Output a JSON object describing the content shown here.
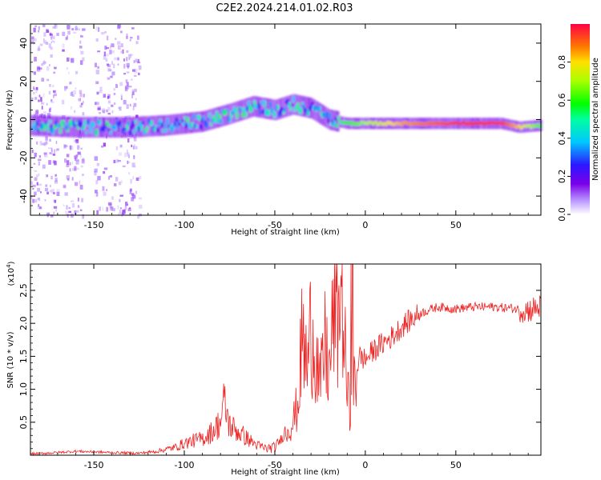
{
  "title": "C2E2.2024.214.01.02.R03",
  "chart_data": [
    {
      "type": "heatmap",
      "name": "spectrogram",
      "xlabel": "Height of straight line (km)",
      "ylabel": "Frequency (Hz)",
      "xlim": [
        -185,
        97
      ],
      "ylim": [
        -50,
        50
      ],
      "xticks": [
        -150,
        -100,
        -50,
        0,
        50
      ],
      "yticks": [
        -40,
        -20,
        0,
        20,
        40
      ],
      "colorbar": {
        "label": "Normalized spectral amplitude",
        "range": [
          0,
          1
        ],
        "ticks": [
          "0.0",
          "0.2",
          "0.4",
          "0.6",
          "0.8"
        ],
        "tick_values": [
          0,
          0.2,
          0.4,
          0.6,
          0.8
        ]
      },
      "trace": [
        {
          "x": -185,
          "freq": -3,
          "amp": 0.45
        },
        {
          "x": -160,
          "freq": -4,
          "amp": 0.5
        },
        {
          "x": -130,
          "freq": -4,
          "amp": 0.45
        },
        {
          "x": -110,
          "freq": -3,
          "amp": 0.45
        },
        {
          "x": -90,
          "freq": -1,
          "amp": 0.45
        },
        {
          "x": -75,
          "freq": 3,
          "amp": 0.5
        },
        {
          "x": -62,
          "freq": 7,
          "amp": 0.45
        },
        {
          "x": -50,
          "freq": 5,
          "amp": 0.45
        },
        {
          "x": -40,
          "freq": 8,
          "amp": 0.45
        },
        {
          "x": -30,
          "freq": 6,
          "amp": 0.4
        },
        {
          "x": -20,
          "freq": 0,
          "amp": 0.4
        },
        {
          "x": -10,
          "freq": -2,
          "amp": 0.6
        },
        {
          "x": 0,
          "freq": -2,
          "amp": 0.7
        },
        {
          "x": 20,
          "freq": -2,
          "amp": 0.85
        },
        {
          "x": 50,
          "freq": -2,
          "amp": 0.95
        },
        {
          "x": 75,
          "freq": -2,
          "amp": 0.95
        },
        {
          "x": 85,
          "freq": -4,
          "amp": 0.8
        },
        {
          "x": 97,
          "freq": -3,
          "amp": 0.6
        }
      ]
    },
    {
      "type": "line",
      "name": "snr",
      "xlabel": "Height of straight line (km)",
      "ylabel": "SNR (10 * v/v)",
      "multiplier_label": "(x10",
      "multiplier_exp": "4",
      "multiplier_close": ")",
      "xlim": [
        -185,
        97
      ],
      "ylim": [
        0,
        2.9
      ],
      "xticks": [
        -150,
        -100,
        -50,
        0,
        50
      ],
      "yticks": [
        0.5,
        1.0,
        1.5,
        2.0,
        2.5
      ],
      "ytick_labels": [
        "0.5",
        "1.0",
        "1.5",
        "2.0",
        "2.5"
      ],
      "color": "#ee2222",
      "series": [
        {
          "name": "SNR",
          "x": [
            -185,
            -170,
            -160,
            -150,
            -140,
            -125,
            -115,
            -105,
            -100,
            -95,
            -90,
            -85,
            -80,
            -78,
            -75,
            -70,
            -65,
            -60,
            -55,
            -50,
            -45,
            -40,
            -37,
            -35,
            -32,
            -30,
            -27,
            -25,
            -22,
            -20,
            -17,
            -15,
            -13,
            -12,
            -10,
            -8,
            -5,
            -3,
            0,
            5,
            10,
            15,
            20,
            25,
            30,
            35,
            40,
            50,
            60,
            70,
            80,
            90,
            97
          ],
          "y": [
            0.02,
            0.04,
            0.06,
            0.05,
            0.04,
            0.03,
            0.06,
            0.12,
            0.18,
            0.22,
            0.25,
            0.35,
            0.5,
            0.8,
            0.45,
            0.35,
            0.25,
            0.15,
            0.1,
            0.12,
            0.3,
            0.5,
            0.8,
            1.8,
            1.3,
            2.0,
            1.5,
            1.0,
            1.7,
            1.2,
            2.3,
            2.0,
            2.8,
            1.9,
            1.0,
            0.5,
            1.3,
            1.5,
            1.45,
            1.6,
            1.7,
            1.8,
            1.95,
            2.05,
            2.15,
            2.2,
            2.25,
            2.22,
            2.25,
            2.25,
            2.23,
            2.2,
            2.25
          ]
        }
      ]
    }
  ]
}
